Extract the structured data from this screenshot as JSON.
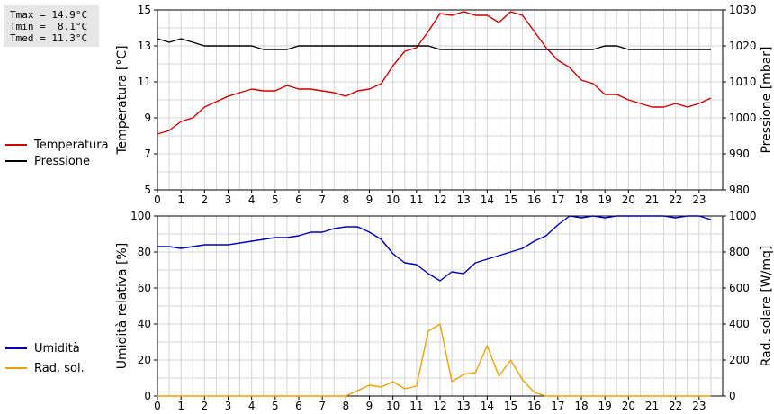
{
  "stats": {
    "tmax": "Tmax = 14.9°C",
    "tmin": "Tmin =  8.1°C",
    "tmed": "Tmed = 11.3°C"
  },
  "chart_data": [
    {
      "type": "line",
      "xlim": [
        0,
        24
      ],
      "x_ticks": [
        0,
        1,
        2,
        3,
        4,
        5,
        6,
        7,
        8,
        9,
        10,
        11,
        12,
        13,
        14,
        15,
        16,
        17,
        18,
        19,
        20,
        21,
        22,
        23
      ],
      "grid": true,
      "legend_placement": "left",
      "y_left": {
        "label": "Temperatura [°C]",
        "lim": [
          5,
          15
        ],
        "ticks": [
          5,
          7,
          9,
          11,
          13,
          15
        ]
      },
      "y_right": {
        "label": "Pressione [mbar]",
        "lim": [
          980,
          1030
        ],
        "ticks": [
          980,
          990,
          1000,
          1010,
          1020,
          1030
        ]
      },
      "series": [
        {
          "name": "Temperatura",
          "axis": "left",
          "color": "#d40000",
          "x": [
            0,
            0.5,
            1,
            1.5,
            2,
            2.5,
            3,
            3.5,
            4,
            4.5,
            5,
            5.5,
            6,
            6.5,
            7,
            7.5,
            8,
            8.5,
            9,
            9.5,
            10,
            10.5,
            11,
            11.5,
            12,
            12.5,
            13,
            13.5,
            14,
            14.5,
            15,
            15.5,
            16,
            16.5,
            17,
            17.5,
            18,
            18.5,
            19,
            19.5,
            20,
            20.5,
            21,
            21.5,
            22,
            22.5,
            23,
            23.5
          ],
          "y": [
            8.1,
            8.3,
            8.8,
            9.0,
            9.6,
            9.9,
            10.2,
            10.4,
            10.6,
            10.5,
            10.5,
            10.8,
            10.6,
            10.6,
            10.5,
            10.4,
            10.2,
            10.5,
            10.6,
            10.9,
            11.9,
            12.7,
            12.9,
            13.8,
            14.8,
            14.7,
            14.9,
            14.7,
            14.7,
            14.3,
            14.9,
            14.7,
            13.8,
            12.9,
            12.2,
            11.8,
            11.1,
            10.9,
            10.3,
            10.3,
            10.0,
            9.8,
            9.6,
            9.6,
            9.8,
            9.6,
            9.8,
            10.1
          ]
        },
        {
          "name": "Pressione",
          "axis": "right",
          "color": "#000000",
          "x": [
            0,
            0.5,
            1,
            1.5,
            2,
            2.5,
            3,
            3.5,
            4,
            4.5,
            5,
            5.5,
            6,
            6.5,
            7,
            7.5,
            8,
            8.5,
            9,
            9.5,
            10,
            10.5,
            11,
            11.5,
            12,
            12.5,
            13,
            13.5,
            14,
            14.5,
            15,
            15.5,
            16,
            16.5,
            17,
            17.5,
            18,
            18.5,
            19,
            19.5,
            20,
            20.5,
            21,
            21.5,
            22,
            22.5,
            23,
            23.5
          ],
          "y": [
            1022,
            1021,
            1022,
            1021,
            1020,
            1020,
            1020,
            1020,
            1020,
            1019,
            1019,
            1019,
            1020,
            1020,
            1020,
            1020,
            1020,
            1020,
            1020,
            1020,
            1020,
            1020,
            1020,
            1020,
            1019,
            1019,
            1019,
            1019,
            1019,
            1019,
            1019,
            1019,
            1019,
            1019,
            1019,
            1019,
            1019,
            1019,
            1020,
            1020,
            1019,
            1019,
            1019,
            1019,
            1019,
            1019,
            1019,
            1019
          ]
        }
      ]
    },
    {
      "type": "line",
      "xlim": [
        0,
        24
      ],
      "x_ticks": [
        0,
        1,
        2,
        3,
        4,
        5,
        6,
        7,
        8,
        9,
        10,
        11,
        12,
        13,
        14,
        15,
        16,
        17,
        18,
        19,
        20,
        21,
        22,
        23
      ],
      "grid": true,
      "legend_placement": "left",
      "y_left": {
        "label": "Umidità relativa [%]",
        "lim": [
          0,
          100
        ],
        "ticks": [
          0,
          20,
          40,
          60,
          80,
          100
        ]
      },
      "y_right": {
        "label": "Rad. solare [W/mq]",
        "lim": [
          0,
          1000
        ],
        "ticks": [
          0,
          200,
          400,
          600,
          800,
          1000
        ]
      },
      "series": [
        {
          "name": "Umidità",
          "axis": "left",
          "color": "#0000c0",
          "x": [
            0,
            0.5,
            1,
            1.5,
            2,
            2.5,
            3,
            3.5,
            4,
            4.5,
            5,
            5.5,
            6,
            6.5,
            7,
            7.5,
            8,
            8.5,
            9,
            9.5,
            10,
            10.5,
            11,
            11.5,
            12,
            12.5,
            13,
            13.5,
            14,
            14.5,
            15,
            15.5,
            16,
            16.5,
            17,
            17.5,
            18,
            18.5,
            19,
            19.5,
            20,
            20.5,
            21,
            21.5,
            22,
            22.5,
            23,
            23.5
          ],
          "y": [
            83,
            83,
            82,
            83,
            84,
            84,
            84,
            85,
            86,
            87,
            88,
            88,
            89,
            91,
            91,
            93,
            94,
            94,
            91,
            87,
            79,
            74,
            73,
            68,
            64,
            69,
            68,
            74,
            76,
            78,
            80,
            82,
            86,
            89,
            95,
            100,
            99,
            100,
            99,
            100,
            100,
            100,
            100,
            100,
            99,
            100,
            100,
            98
          ]
        },
        {
          "name": "Rad. sol.",
          "axis": "right",
          "color": "#f0a000",
          "x": [
            0,
            0.5,
            1,
            1.5,
            2,
            2.5,
            3,
            3.5,
            4,
            4.5,
            5,
            5.5,
            6,
            6.5,
            7,
            7.5,
            8,
            8.5,
            9,
            9.5,
            10,
            10.5,
            11,
            11.5,
            12,
            12.5,
            13,
            13.5,
            14,
            14.5,
            15,
            15.5,
            16,
            16.5,
            17,
            17.5,
            18,
            18.5,
            19,
            19.5,
            20,
            20.5,
            21,
            21.5,
            22,
            22.5,
            23,
            23.5
          ],
          "y": [
            0,
            0,
            0,
            0,
            0,
            0,
            0,
            0,
            0,
            0,
            0,
            0,
            0,
            0,
            0,
            0,
            0,
            30,
            60,
            50,
            80,
            40,
            55,
            360,
            400,
            80,
            120,
            130,
            280,
            110,
            200,
            90,
            20,
            0,
            0,
            0,
            0,
            0,
            0,
            0,
            0,
            0,
            0,
            0,
            0,
            0,
            0,
            0
          ]
        }
      ]
    }
  ]
}
